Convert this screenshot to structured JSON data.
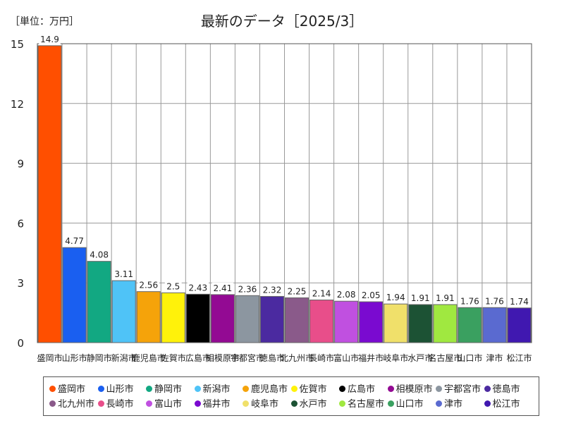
{
  "header": {
    "unit": "［単位：万円］",
    "title": "最新のデータ［2025/3］"
  },
  "chart_data": {
    "type": "bar",
    "categories": [
      "盛岡市",
      "山形市",
      "静岡市",
      "新潟市",
      "鹿児島市",
      "佐賀市",
      "広島市",
      "相模原市",
      "宇都宮市",
      "徳島市",
      "北九州市",
      "長崎市",
      "富山市",
      "福井市",
      "岐阜市",
      "水戸市",
      "名古屋市",
      "山口市",
      "津市",
      "松江市"
    ],
    "values": [
      14.9,
      4.77,
      4.08,
      3.11,
      2.56,
      2.5,
      2.43,
      2.41,
      2.36,
      2.32,
      2.25,
      2.14,
      2.08,
      2.05,
      1.94,
      1.91,
      1.91,
      1.76,
      1.76,
      1.74
    ],
    "value_labels": [
      "14.9",
      "4.77",
      "4.08",
      "3.11",
      "2.56",
      "2.5",
      "2.43",
      "2.41",
      "2.36",
      "2.32",
      "2.25",
      "2.14",
      "2.08",
      "2.05",
      "1.94",
      "1.91",
      "1.91",
      "1.76",
      "1.76",
      "1.74"
    ],
    "colors": [
      "#ff4f00",
      "#1a5ff0",
      "#12a882",
      "#4fc3f7",
      "#f5a30a",
      "#fff20a",
      "#000000",
      "#930a93",
      "#8c96a0",
      "#4b2aa0",
      "#8a5a8a",
      "#e84e8a",
      "#c050e0",
      "#7a0ad0",
      "#f0e06a",
      "#1c5234",
      "#a0e840",
      "#3aa060",
      "#5a6ad0",
      "#4018b0"
    ],
    "yticks": [
      "0",
      "3",
      "6",
      "9",
      "12",
      "15"
    ],
    "ylim": [
      0,
      15
    ],
    "grid": true,
    "legend": "bottom"
  }
}
